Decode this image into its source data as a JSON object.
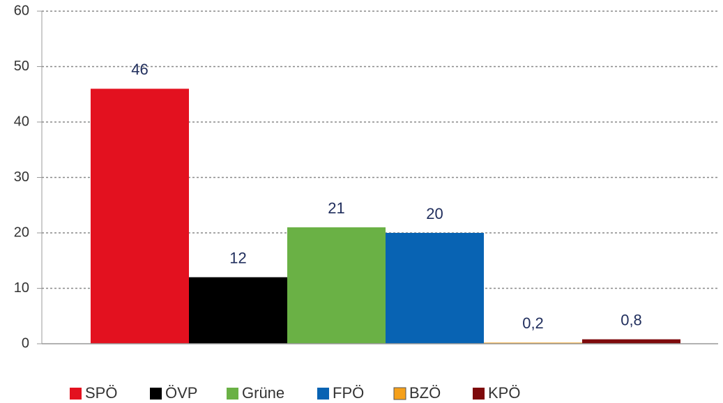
{
  "chart_data": {
    "type": "bar",
    "categories": [
      "SPÖ",
      "ÖVP",
      "Grüne",
      "FPÖ",
      "BZÖ",
      "KPÖ"
    ],
    "values": [
      46,
      12,
      21,
      20,
      0.2,
      0.8
    ],
    "value_labels": [
      "46",
      "12",
      "21",
      "20",
      "0,2",
      "0,8"
    ],
    "colors": [
      "#e3111f",
      "#000000",
      "#6ab145",
      "#0863b3",
      "#f5a01a",
      "#7e0a0c"
    ],
    "ylim": [
      0,
      60
    ],
    "yticks": [
      0,
      10,
      20,
      30,
      40,
      50,
      60
    ],
    "grid": true,
    "legend": "bottom"
  }
}
